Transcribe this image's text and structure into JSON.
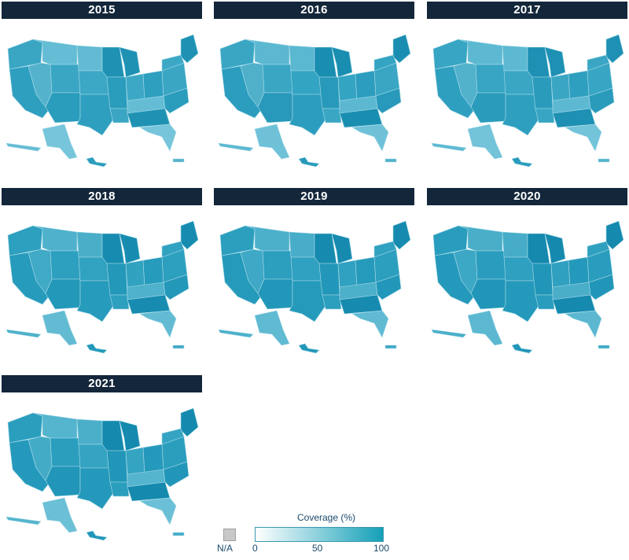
{
  "panels": [
    {
      "year": "2015",
      "colors": {
        "a": "#3aa6c4",
        "b": "#54b2cc",
        "c": "#2f9fc0",
        "d": "#62bbd3",
        "e": "#2a9cbc",
        "f": "#3ca8c6",
        "g": "#64bdd5",
        "h": "#1f92b4",
        "i": "#76c5db"
      }
    },
    {
      "year": "2016",
      "colors": {
        "a": "#3aa6c4",
        "b": "#50b0ca",
        "c": "#2c9dbe",
        "d": "#5ab8d1",
        "e": "#2899ba",
        "f": "#34a4c3",
        "g": "#5cb8d1",
        "h": "#1a8eb1",
        "i": "#6fc1d8"
      }
    },
    {
      "year": "2017",
      "colors": {
        "a": "#37a5c3",
        "b": "#52b2cc",
        "c": "#2f9fbf",
        "d": "#5db9d2",
        "e": "#2a9bbb",
        "f": "#3aa6c4",
        "g": "#5db9d2",
        "h": "#1d90b3",
        "i": "#73c3d9"
      }
    },
    {
      "year": "2018",
      "colors": {
        "a": "#2d9fbf",
        "b": "#40a9c6",
        "c": "#279bbc",
        "d": "#4aaec9",
        "e": "#2398b9",
        "f": "#32a2c1",
        "g": "#4fb1cb",
        "h": "#178cb0",
        "i": "#62bbd3"
      }
    },
    {
      "year": "2019",
      "colors": {
        "a": "#2c9ebe",
        "b": "#3ea8c6",
        "c": "#269abb",
        "d": "#48adc9",
        "e": "#2397b9",
        "f": "#31a1c1",
        "g": "#4db0ca",
        "h": "#168baf",
        "i": "#5fbad2"
      }
    },
    {
      "year": "2020",
      "colors": {
        "a": "#2a9dbe",
        "b": "#3da8c5",
        "c": "#2599bb",
        "d": "#46acc8",
        "e": "#2196b8",
        "f": "#30a0c0",
        "g": "#4aaec9",
        "h": "#1589ae",
        "i": "#5cb8d1"
      }
    },
    {
      "year": "2021",
      "colors": {
        "a": "#2b9ebe",
        "b": "#44abc7",
        "c": "#2599bb",
        "d": "#4cafca",
        "e": "#2196b8",
        "f": "#35a4c2",
        "g": "#55b4ce",
        "h": "#1589ae",
        "i": "#6bbfd6"
      }
    }
  ],
  "legend": {
    "title": "Coverage (%)",
    "na_label": "N/A",
    "ticks": [
      "0",
      "50",
      "100"
    ],
    "min_color": "#ffffff",
    "max_color": "#14a0b8",
    "na_color": "#c8c8c8"
  }
}
